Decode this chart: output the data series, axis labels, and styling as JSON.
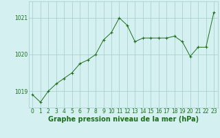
{
  "x": [
    0,
    1,
    2,
    3,
    4,
    5,
    6,
    7,
    8,
    9,
    10,
    11,
    12,
    13,
    14,
    15,
    16,
    17,
    18,
    19,
    20,
    21,
    22,
    23
  ],
  "y": [
    1018.9,
    1018.7,
    1019.0,
    1019.2,
    1019.35,
    1019.5,
    1019.75,
    1019.85,
    1020.0,
    1020.4,
    1020.6,
    1021.0,
    1020.8,
    1020.35,
    1020.45,
    1020.45,
    1020.45,
    1020.45,
    1020.5,
    1020.35,
    1019.95,
    1020.2,
    1020.2,
    1021.15
  ],
  "line_color": "#1a6e1a",
  "marker_color": "#1a6e1a",
  "bg_color": "#d5f0f0",
  "grid_color": "#a0cccc",
  "axis_label_color": "#1a6e1a",
  "xlabel": "Graphe pression niveau de la mer (hPa)",
  "ylim_min": 1018.55,
  "ylim_max": 1021.45,
  "yticks": [
    1019,
    1020,
    1021
  ],
  "xticks": [
    0,
    1,
    2,
    3,
    4,
    5,
    6,
    7,
    8,
    9,
    10,
    11,
    12,
    13,
    14,
    15,
    16,
    17,
    18,
    19,
    20,
    21,
    22,
    23
  ],
  "tick_fontsize": 5.5,
  "xlabel_fontsize": 7.0
}
